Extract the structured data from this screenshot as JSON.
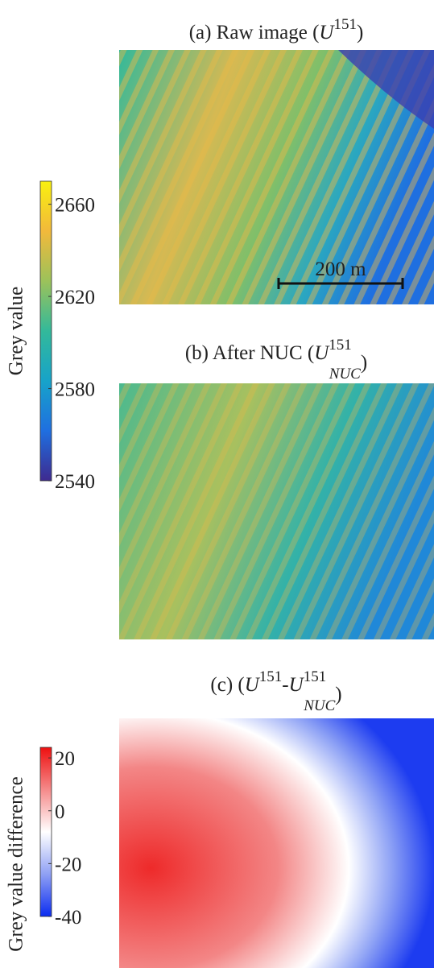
{
  "panels": [
    {
      "title": [
        {
          "text": "(a) Raw image (",
          "style": "normal"
        },
        {
          "text": "U",
          "style": "italic"
        },
        {
          "text": "151",
          "style": "sup"
        },
        {
          "text": ")",
          "style": "normal"
        }
      ],
      "scale_bar": "200 m"
    },
    {
      "title": [
        {
          "text": "(b) After NUC (",
          "style": "normal"
        },
        {
          "text": "U",
          "style": "italic"
        },
        {
          "text": "151",
          "style": "sup"
        },
        {
          "text": "NUC",
          "style": "sub"
        },
        {
          "text": ")",
          "style": "normal"
        }
      ]
    },
    {
      "title": [
        {
          "text": "(c) (",
          "style": "normal"
        },
        {
          "text": "U",
          "style": "italic"
        },
        {
          "text": "151",
          "style": "sup"
        },
        {
          "text": "-",
          "style": "normal"
        },
        {
          "text": "U",
          "style": "italic"
        },
        {
          "text": "151",
          "style": "sup"
        },
        {
          "text": "NUC",
          "style": "sub"
        },
        {
          "text": ")",
          "style": "normal"
        }
      ]
    }
  ],
  "colorbars": [
    {
      "label": "Grey value",
      "lim": [
        2540,
        2670
      ],
      "ticks": [
        2540,
        2580,
        2620,
        2660
      ],
      "colors": [
        "#3e2a8f",
        "#1f6fe0",
        "#17a3c9",
        "#33b99a",
        "#9cc25a",
        "#f2b93b",
        "#f9f00f"
      ]
    },
    {
      "label": "Grey value difference",
      "lim": [
        -40,
        24
      ],
      "ticks": [
        -40,
        -20,
        0,
        20
      ],
      "colors": [
        "#0b2cf0",
        "#8fa0f4",
        "#ffffff",
        "#f58a8a",
        "#ee1010"
      ]
    }
  ]
}
